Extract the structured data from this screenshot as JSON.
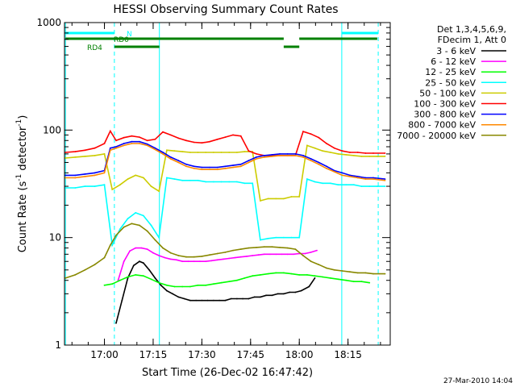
{
  "chart_data": {
    "type": "line",
    "title": "HESSI Observing Summary Count Rates",
    "xlabel": "Start Time (26-Dec-02 16:47:42)",
    "ylabel": "Count Rate (s",
    "ylabel_sup1": "-1",
    "ylabel_mid": " detector",
    "ylabel_sup2": "-1",
    "ylabel_end": ")",
    "yscale": "log",
    "ylim": [
      1,
      1000
    ],
    "xlim": [
      16.795,
      18.4667
    ],
    "x_ticks": [
      {
        "t": 17.0,
        "label": "17:00"
      },
      {
        "t": 17.25,
        "label": "17:15"
      },
      {
        "t": 17.5,
        "label": "17:30"
      },
      {
        "t": 17.75,
        "label": "17:45"
      },
      {
        "t": 18.0,
        "label": "18:00"
      },
      {
        "t": 18.25,
        "label": "18:15"
      }
    ],
    "y_ticks": [
      {
        "v": 1,
        "label": "1"
      },
      {
        "v": 10,
        "label": "10"
      },
      {
        "v": 100,
        "label": "100"
      },
      {
        "v": 1000,
        "label": "1000"
      }
    ],
    "legend_header": [
      "Det 1,3,4,5,6,9,",
      "FDecim 1, Att 0"
    ],
    "legend_position": "right",
    "series": [
      {
        "name": "3 - 6 keV",
        "color": "#000000",
        "x": [
          17.06,
          17.09,
          17.12,
          17.15,
          17.18,
          17.2,
          17.23,
          17.26,
          17.29,
          17.32,
          17.35,
          17.38,
          17.41,
          17.44,
          17.47,
          17.5,
          17.53,
          17.56,
          17.59,
          17.62,
          17.65,
          17.68,
          17.71,
          17.74,
          17.77,
          17.8,
          17.83,
          17.86,
          17.89,
          17.92,
          17.95,
          17.98,
          18.01,
          18.05,
          18.08
        ],
        "y": [
          1.6,
          2.6,
          4.2,
          5.5,
          6.0,
          5.8,
          5.0,
          4.2,
          3.6,
          3.2,
          3.0,
          2.8,
          2.7,
          2.6,
          2.6,
          2.6,
          2.6,
          2.6,
          2.6,
          2.6,
          2.7,
          2.7,
          2.7,
          2.7,
          2.8,
          2.8,
          2.9,
          2.9,
          3.0,
          3.0,
          3.1,
          3.1,
          3.2,
          3.5,
          4.2
        ]
      },
      {
        "name": "6 - 12 keV",
        "color": "#ff00ff",
        "x": [
          17.07,
          17.1,
          17.13,
          17.16,
          17.19,
          17.22,
          17.25,
          17.28,
          17.31,
          17.34,
          17.37,
          17.4,
          17.43,
          17.46,
          17.49,
          17.52,
          17.55,
          17.58,
          17.61,
          17.64,
          17.67,
          17.7,
          17.73,
          17.76,
          17.79,
          17.82,
          17.85,
          17.88,
          17.91,
          17.94,
          17.97,
          18.0,
          18.03,
          18.06,
          18.09
        ],
        "y": [
          4.0,
          6.0,
          7.5,
          8.0,
          8.0,
          7.8,
          7.2,
          6.8,
          6.5,
          6.3,
          6.2,
          6.0,
          6.0,
          6.0,
          6.0,
          6.0,
          6.1,
          6.2,
          6.3,
          6.4,
          6.5,
          6.6,
          6.7,
          6.8,
          6.9,
          7.0,
          7.0,
          7.0,
          7.0,
          7.0,
          7.0,
          7.1,
          7.1,
          7.3,
          7.6
        ]
      },
      {
        "name": "12 - 25 keV",
        "color": "#00ff00",
        "x": [
          17.0,
          17.04,
          17.08,
          17.12,
          17.16,
          17.2,
          17.24,
          17.28,
          17.32,
          17.36,
          17.4,
          17.44,
          17.48,
          17.52,
          17.56,
          17.6,
          17.64,
          17.68,
          17.72,
          17.76,
          17.8,
          17.84,
          17.88,
          17.92,
          17.96,
          18.0,
          18.04,
          18.08,
          18.12,
          18.16,
          18.2,
          18.24,
          18.28,
          18.32,
          18.36
        ],
        "y": [
          3.6,
          3.7,
          4.0,
          4.3,
          4.5,
          4.4,
          4.1,
          3.8,
          3.6,
          3.5,
          3.5,
          3.5,
          3.6,
          3.6,
          3.7,
          3.8,
          3.9,
          4.0,
          4.2,
          4.4,
          4.5,
          4.6,
          4.7,
          4.7,
          4.6,
          4.5,
          4.5,
          4.4,
          4.3,
          4.2,
          4.1,
          4.0,
          3.9,
          3.9,
          3.8
        ]
      },
      {
        "name": "25 - 50 keV",
        "color": "#00ffff",
        "x": [
          16.8,
          16.85,
          16.9,
          16.95,
          17.0,
          17.04,
          17.08,
          17.12,
          17.16,
          17.2,
          17.24,
          17.28,
          17.32,
          17.36,
          17.4,
          17.44,
          17.48,
          17.52,
          17.56,
          17.6,
          17.64,
          17.68,
          17.72,
          17.76,
          17.8,
          17.84,
          17.88,
          17.92,
          17.96,
          18.0,
          18.04,
          18.08,
          18.12,
          18.16,
          18.2,
          18.24,
          18.28,
          18.32,
          18.36,
          18.4,
          18.44
        ],
        "y": [
          29,
          29,
          30,
          30,
          31,
          8.5,
          12,
          15,
          17,
          16,
          13,
          10,
          36,
          35,
          34,
          34,
          34,
          33,
          33,
          33,
          33,
          33,
          32,
          32,
          9.5,
          9.8,
          10,
          10,
          10,
          10,
          35,
          33,
          32,
          32,
          31,
          31,
          31,
          30,
          30,
          30,
          30
        ]
      },
      {
        "name": "50 - 100 keV",
        "color": "#cccc00",
        "x": [
          16.8,
          16.85,
          16.9,
          16.95,
          17.0,
          17.04,
          17.08,
          17.12,
          17.16,
          17.2,
          17.24,
          17.28,
          17.32,
          17.36,
          17.4,
          17.44,
          17.48,
          17.52,
          17.56,
          17.6,
          17.64,
          17.68,
          17.72,
          17.76,
          17.8,
          17.84,
          17.88,
          17.92,
          17.96,
          18.0,
          18.04,
          18.08,
          18.12,
          18.16,
          18.2,
          18.24,
          18.28,
          18.32,
          18.36,
          18.4,
          18.44
        ],
        "y": [
          55,
          56,
          57,
          58,
          60,
          28,
          31,
          35,
          38,
          36,
          30,
          27,
          65,
          64,
          63,
          62,
          62,
          62,
          62,
          62,
          62,
          62,
          63,
          63,
          22,
          23,
          23,
          23,
          24,
          24,
          72,
          68,
          64,
          62,
          60,
          59,
          58,
          57,
          57,
          57,
          57
        ]
      },
      {
        "name": "100 - 300 keV",
        "color": "#ff0000",
        "x": [
          16.8,
          16.85,
          16.9,
          16.95,
          17.0,
          17.03,
          17.06,
          17.1,
          17.14,
          17.18,
          17.22,
          17.26,
          17.3,
          17.34,
          17.38,
          17.42,
          17.46,
          17.5,
          17.54,
          17.58,
          17.62,
          17.66,
          17.7,
          17.74,
          17.78,
          17.82,
          17.86,
          17.9,
          17.94,
          17.98,
          18.02,
          18.06,
          18.1,
          18.14,
          18.18,
          18.22,
          18.26,
          18.3,
          18.34,
          18.38,
          18.44
        ],
        "y": [
          62,
          63,
          65,
          68,
          75,
          98,
          80,
          85,
          88,
          86,
          80,
          82,
          96,
          90,
          84,
          80,
          77,
          76,
          78,
          82,
          86,
          90,
          88,
          64,
          60,
          58,
          58,
          58,
          58,
          58,
          97,
          92,
          85,
          75,
          68,
          64,
          62,
          62,
          61,
          61,
          61
        ]
      },
      {
        "name": "300 - 800 keV",
        "color": "#0000ff",
        "x": [
          16.8,
          16.85,
          16.9,
          16.95,
          17.0,
          17.03,
          17.06,
          17.1,
          17.14,
          17.18,
          17.22,
          17.26,
          17.3,
          17.34,
          17.38,
          17.42,
          17.46,
          17.5,
          17.54,
          17.58,
          17.62,
          17.66,
          17.7,
          17.74,
          17.78,
          17.82,
          17.86,
          17.9,
          17.94,
          17.98,
          18.02,
          18.06,
          18.1,
          18.14,
          18.18,
          18.22,
          18.26,
          18.3,
          18.34,
          18.38,
          18.44
        ],
        "y": [
          38,
          38,
          39,
          40,
          42,
          68,
          70,
          75,
          78,
          78,
          74,
          68,
          62,
          56,
          52,
          48,
          46,
          45,
          45,
          45,
          46,
          47,
          48,
          52,
          56,
          58,
          59,
          60,
          60,
          60,
          58,
          54,
          50,
          46,
          42,
          40,
          38,
          37,
          36,
          36,
          35
        ]
      },
      {
        "name": "800 - 7000 keV",
        "color": "#ff8800",
        "x": [
          16.8,
          16.85,
          16.9,
          16.95,
          17.0,
          17.03,
          17.06,
          17.1,
          17.14,
          17.18,
          17.22,
          17.26,
          17.3,
          17.34,
          17.38,
          17.42,
          17.46,
          17.5,
          17.54,
          17.58,
          17.62,
          17.66,
          17.7,
          17.74,
          17.78,
          17.82,
          17.86,
          17.9,
          17.94,
          17.98,
          18.02,
          18.06,
          18.1,
          18.14,
          18.18,
          18.22,
          18.26,
          18.3,
          18.34,
          18.38,
          18.44
        ],
        "y": [
          36,
          36,
          37,
          38,
          40,
          65,
          68,
          72,
          75,
          75,
          72,
          66,
          60,
          54,
          50,
          46,
          44,
          43,
          43,
          43,
          44,
          45,
          46,
          50,
          54,
          56,
          57,
          58,
          58,
          58,
          56,
          52,
          48,
          44,
          41,
          38,
          37,
          36,
          35,
          35,
          34
        ]
      },
      {
        "name": "7000 - 20000 keV",
        "color": "#888800",
        "x": [
          16.8,
          16.85,
          16.9,
          16.95,
          17.0,
          17.03,
          17.06,
          17.1,
          17.14,
          17.18,
          17.22,
          17.26,
          17.3,
          17.34,
          17.38,
          17.42,
          17.46,
          17.5,
          17.54,
          17.58,
          17.62,
          17.66,
          17.7,
          17.74,
          17.78,
          17.82,
          17.86,
          17.9,
          17.94,
          17.98,
          18.02,
          18.06,
          18.1,
          18.14,
          18.18,
          18.22,
          18.26,
          18.3,
          18.34,
          18.38,
          18.44
        ],
        "y": [
          4.2,
          4.5,
          5.0,
          5.6,
          6.5,
          8.5,
          10.5,
          12.5,
          13.5,
          13.0,
          11.5,
          9.5,
          8.0,
          7.2,
          6.8,
          6.6,
          6.6,
          6.7,
          6.9,
          7.1,
          7.3,
          7.6,
          7.8,
          8.0,
          8.1,
          8.2,
          8.2,
          8.1,
          8.0,
          7.8,
          6.8,
          6.0,
          5.6,
          5.2,
          5.0,
          4.9,
          4.8,
          4.7,
          4.7,
          4.6,
          4.6
        ]
      }
    ],
    "vertical_markers": [
      {
        "t": 16.8,
        "color": "#00ffff",
        "style": "solid"
      },
      {
        "t": 17.051,
        "color": "#00ffff",
        "style": "dashed"
      },
      {
        "t": 17.282,
        "color": "#00ffff",
        "style": "solid"
      },
      {
        "t": 18.218,
        "color": "#00ffff",
        "style": "solid"
      },
      {
        "t": 18.405,
        "color": "#00ffff",
        "style": "dashed"
      }
    ],
    "flag_bars": [
      {
        "label": "N",
        "color": "#00ffff",
        "level": "top",
        "segments": [
          [
            16.8,
            17.051
          ],
          [
            18.218,
            18.405
          ]
        ]
      },
      {
        "label": "RD0",
        "color": "#008000",
        "level": "mid",
        "segments": [
          [
            16.8,
            17.282
          ],
          [
            17.282,
            17.92
          ],
          [
            18.0,
            18.4
          ]
        ]
      },
      {
        "label": "RD4",
        "color": "#008000",
        "level": "low",
        "segments": [
          [
            17.051,
            17.282
          ],
          [
            17.92,
            18.0
          ]
        ]
      }
    ],
    "grid": false
  },
  "footer_timestamp": "27-Mar-2010 14:04"
}
